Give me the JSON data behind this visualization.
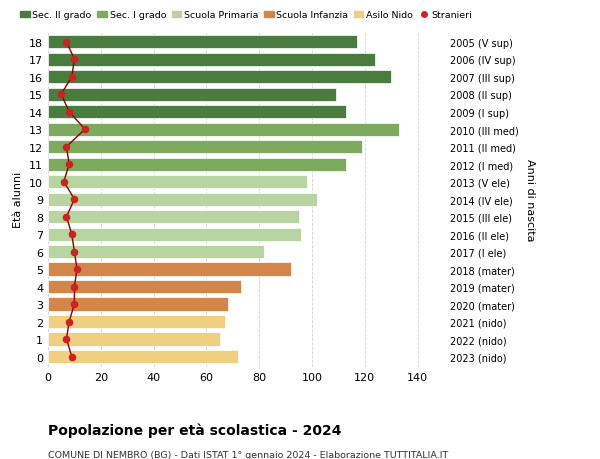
{
  "ages": [
    18,
    17,
    16,
    15,
    14,
    13,
    12,
    11,
    10,
    9,
    8,
    7,
    6,
    5,
    4,
    3,
    2,
    1,
    0
  ],
  "right_labels": [
    "2005 (V sup)",
    "2006 (IV sup)",
    "2007 (III sup)",
    "2008 (II sup)",
    "2009 (I sup)",
    "2010 (III med)",
    "2011 (II med)",
    "2012 (I med)",
    "2013 (V ele)",
    "2014 (IV ele)",
    "2015 (III ele)",
    "2016 (II ele)",
    "2017 (I ele)",
    "2018 (mater)",
    "2019 (mater)",
    "2020 (mater)",
    "2021 (nido)",
    "2022 (nido)",
    "2023 (nido)"
  ],
  "bar_values": [
    117,
    124,
    130,
    109,
    113,
    133,
    119,
    113,
    98,
    102,
    95,
    96,
    82,
    92,
    73,
    68,
    67,
    65,
    72
  ],
  "bar_colors": [
    "#4a7c3f",
    "#4a7c3f",
    "#4a7c3f",
    "#4a7c3f",
    "#4a7c3f",
    "#7daa5e",
    "#7daa5e",
    "#7daa5e",
    "#b8d4a0",
    "#b8d4a0",
    "#b8d4a0",
    "#b8d4a0",
    "#b8d4a0",
    "#d4854a",
    "#d4854a",
    "#d4854a",
    "#f0d080",
    "#f0d080",
    "#f0d080"
  ],
  "stranieri_values": [
    7,
    10,
    9,
    5,
    8,
    14,
    7,
    8,
    6,
    10,
    7,
    9,
    10,
    11,
    10,
    10,
    8,
    7,
    9
  ],
  "legend_labels": [
    "Sec. II grado",
    "Sec. I grado",
    "Scuola Primaria",
    "Scuola Infanzia",
    "Asilo Nido",
    "Stranieri"
  ],
  "legend_colors": [
    "#4a7c3f",
    "#7daa5e",
    "#b8d4a0",
    "#d4854a",
    "#f0d080",
    "#cc2222"
  ],
  "ylabel_left": "Età alunni",
  "ylabel_right": "Anni di nascita",
  "title": "Popolazione per età scolastica - 2024",
  "subtitle": "COMUNE DI NEMBRO (BG) - Dati ISTAT 1° gennaio 2024 - Elaborazione TUTTITALIA.IT",
  "xlim": [
    0,
    150
  ],
  "background_color": "#ffffff",
  "bar_height": 0.75,
  "grid_color": "#cccccc"
}
